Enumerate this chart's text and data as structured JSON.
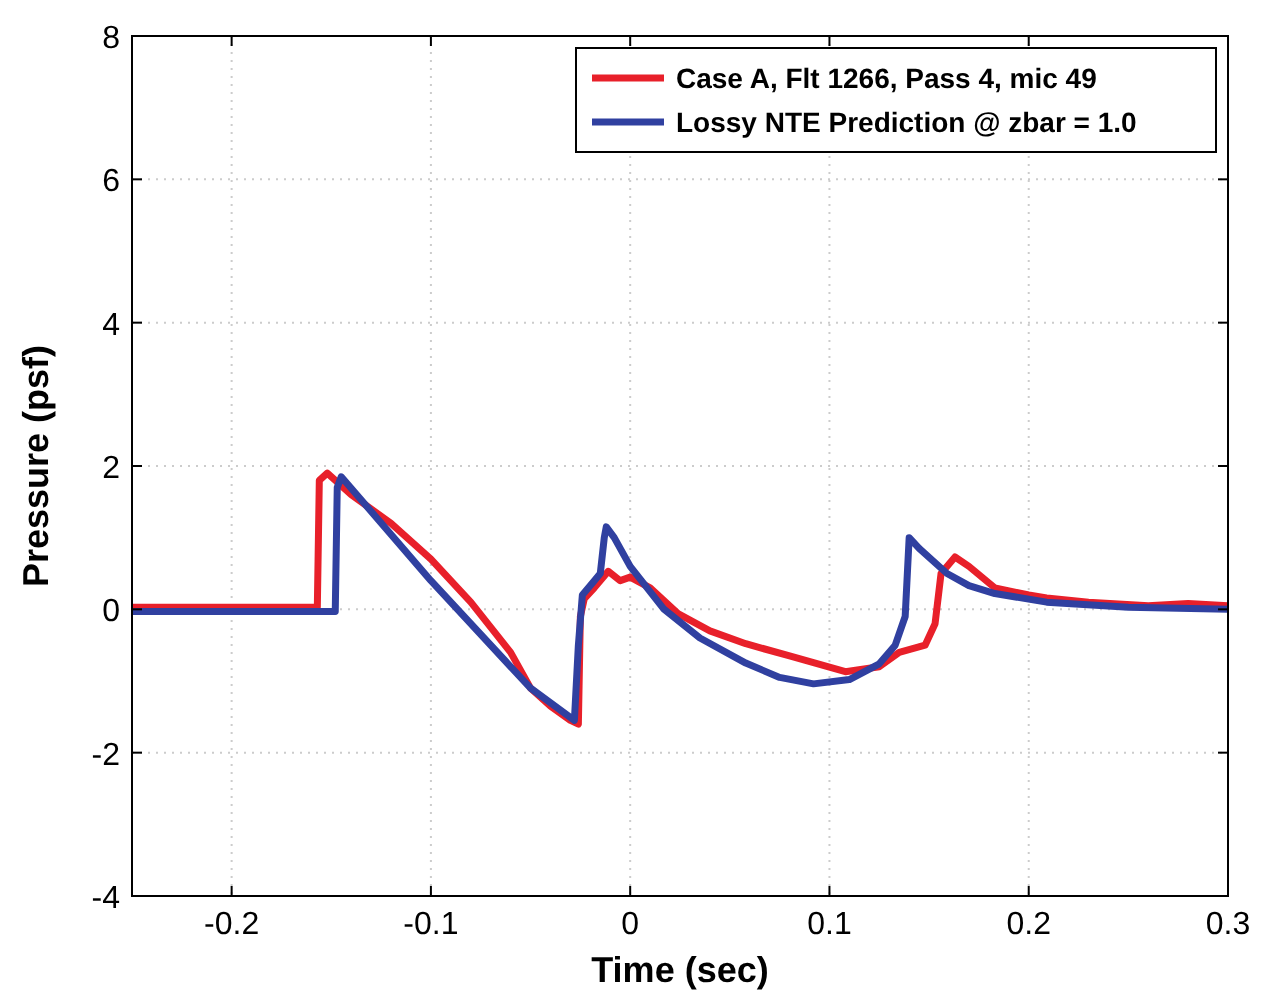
{
  "chart_data": {
    "type": "line",
    "xlabel": "Time (sec)",
    "ylabel": "Pressure (psf)",
    "xlim": [
      -0.25,
      0.3
    ],
    "ylim": [
      -4,
      8
    ],
    "xticks": [
      -0.2,
      -0.1,
      0,
      0.1,
      0.2,
      0.3
    ],
    "yticks": [
      -4,
      -2,
      0,
      2,
      4,
      6,
      8
    ],
    "grid": true,
    "legend": "top right",
    "line_style": "solid",
    "marker": "none",
    "series": [
      {
        "name": "Case A, Flt 1266, Pass 4, mic 49",
        "color": "#e8202a",
        "x": [
          -0.25,
          -0.2,
          -0.157,
          -0.156,
          -0.152,
          -0.14,
          -0.12,
          -0.1,
          -0.08,
          -0.06,
          -0.05,
          -0.04,
          -0.03,
          -0.026,
          -0.025,
          -0.023,
          -0.018,
          -0.011,
          -0.005,
          0.0,
          0.01,
          0.024,
          0.04,
          0.058,
          0.08,
          0.108,
          0.125,
          0.135,
          0.148,
          0.153,
          0.156,
          0.163,
          0.17,
          0.183,
          0.2,
          0.209,
          0.23,
          0.26,
          0.28,
          0.3
        ],
        "values": [
          0.03,
          0.03,
          0.03,
          1.8,
          1.9,
          1.6,
          1.2,
          0.7,
          0.1,
          -0.6,
          -1.1,
          -1.35,
          -1.55,
          -1.6,
          -0.1,
          0.15,
          0.3,
          0.53,
          0.4,
          0.45,
          0.3,
          -0.06,
          -0.3,
          -0.48,
          -0.65,
          -0.87,
          -0.8,
          -0.6,
          -0.5,
          -0.2,
          0.5,
          0.73,
          0.6,
          0.3,
          0.2,
          0.16,
          0.1,
          0.05,
          0.08,
          0.05
        ]
      },
      {
        "name": "Lossy NTE Prediction @ zbar = 1.0",
        "color": "#3040a0",
        "x": [
          -0.25,
          -0.2,
          -0.148,
          -0.147,
          -0.145,
          -0.1,
          -0.05,
          -0.028,
          -0.026,
          -0.024,
          -0.018,
          -0.015,
          -0.013,
          -0.012,
          -0.008,
          0.0,
          0.017,
          0.035,
          0.058,
          0.075,
          0.092,
          0.11,
          0.125,
          0.133,
          0.138,
          0.14,
          0.145,
          0.159,
          0.17,
          0.183,
          0.209,
          0.25,
          0.3
        ],
        "values": [
          -0.03,
          -0.03,
          -0.03,
          1.7,
          1.85,
          0.4,
          -1.1,
          -1.55,
          -0.5,
          0.2,
          0.4,
          0.5,
          1.0,
          1.15,
          1.0,
          0.6,
          0.0,
          -0.4,
          -0.75,
          -0.95,
          -1.04,
          -0.98,
          -0.76,
          -0.5,
          -0.1,
          1.0,
          0.85,
          0.5,
          0.33,
          0.22,
          0.1,
          0.03,
          0.0
        ]
      }
    ]
  }
}
